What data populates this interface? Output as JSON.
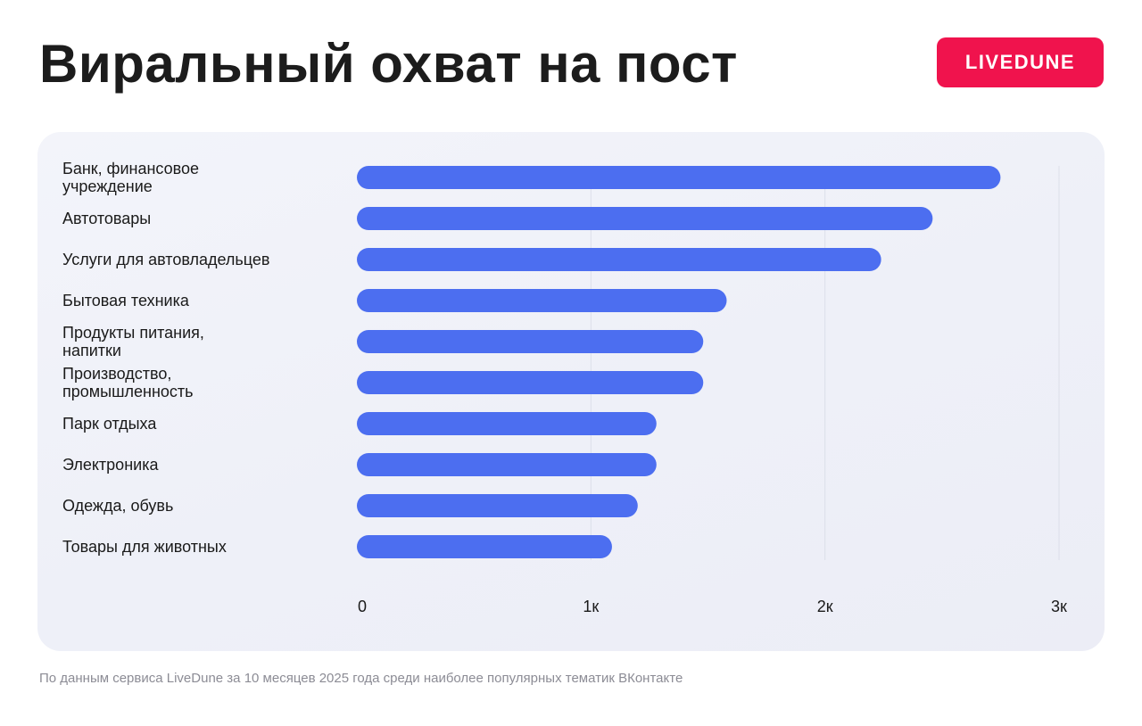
{
  "header": {
    "title": "Виральный охват на пост",
    "logo_text": "LIVEDUNE"
  },
  "footer": {
    "source": "По данным сервиса LiveDune за 10 месяцев 2025 года среди наиболее популярных тематик ВКонтакте"
  },
  "colors": {
    "bar": "#4c6ef0",
    "accent": "#f0134d",
    "grid": "#dcdfe9",
    "label": "#1a1a1a"
  },
  "chart_data": {
    "type": "bar",
    "orientation": "horizontal",
    "categories": [
      [
        "Банк, финансовое",
        "учреждение"
      ],
      [
        "Автотовары"
      ],
      [
        "Услуги для автовладельцев"
      ],
      [
        "Бытовая техника"
      ],
      [
        "Продукты питания,",
        "напитки"
      ],
      [
        "Производство,",
        "промышленность"
      ],
      [
        "Парк отдыха"
      ],
      [
        "Электроника"
      ],
      [
        "Одежда, обувь"
      ],
      [
        "Товары для животных"
      ]
    ],
    "values": [
      2750,
      2460,
      2240,
      1580,
      1480,
      1480,
      1280,
      1280,
      1200,
      1090
    ],
    "xlim": [
      0,
      3000
    ],
    "xticks": [
      0,
      1000,
      2000,
      3000
    ],
    "xtick_labels": [
      "0",
      "1к",
      "2к",
      "3к"
    ],
    "grid": true
  }
}
